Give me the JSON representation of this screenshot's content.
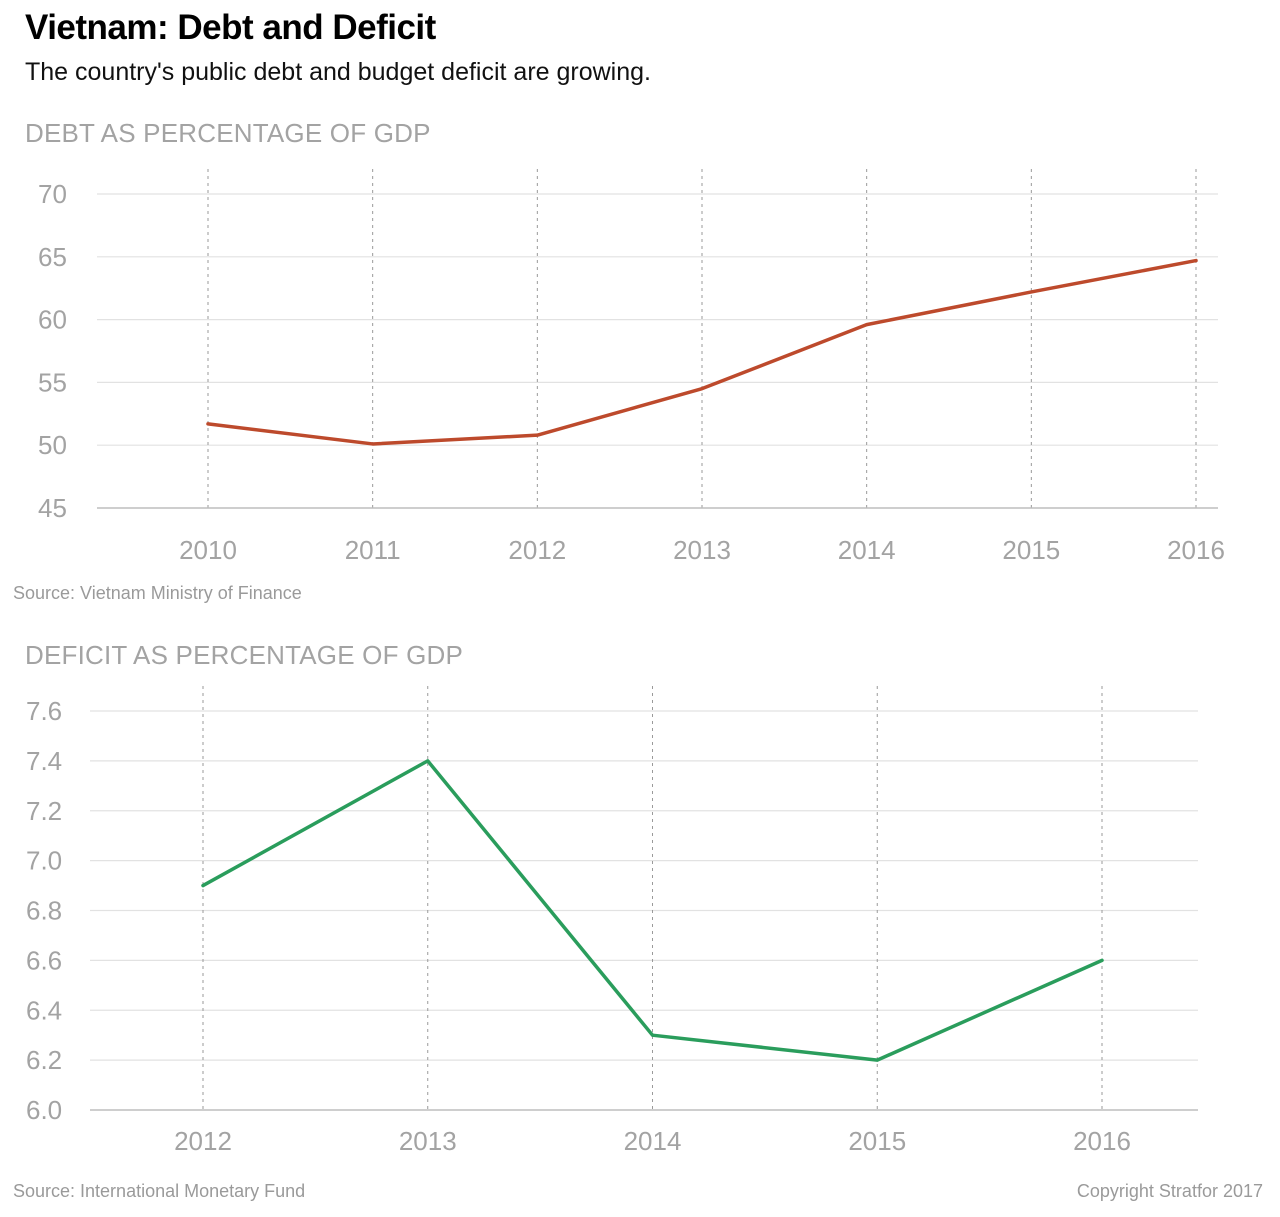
{
  "header": {
    "title": "Vietnam: Debt and Deficit",
    "subtitle": "The country's public debt and budget deficit are growing."
  },
  "footer": {
    "copyright": "Copyright Stratfor 2017"
  },
  "chart_data": [
    {
      "type": "line",
      "title": "DEBT AS PERCENTAGE OF GDP",
      "source": "Source: Vietnam Ministry of Finance",
      "x": [
        "2010",
        "2011",
        "2012",
        "2013",
        "2014",
        "2015",
        "2016"
      ],
      "values": [
        51.7,
        50.1,
        50.8,
        54.5,
        59.6,
        62.2,
        64.7
      ],
      "yticks": [
        "45",
        "50",
        "55",
        "60",
        "65",
        "70"
      ],
      "ylim": [
        45,
        70
      ],
      "color": "#bd4a2c",
      "grid": true
    },
    {
      "type": "line",
      "title": "DEFICIT AS PERCENTAGE OF GDP",
      "source": "Source: International Monetary Fund",
      "x": [
        "2012",
        "2013",
        "2014",
        "2015",
        "2016"
      ],
      "values": [
        6.9,
        7.4,
        6.3,
        6.2,
        6.6
      ],
      "yticks": [
        "6.0",
        "6.2",
        "6.4",
        "6.6",
        "6.8",
        "7.0",
        "7.2",
        "7.4",
        "7.6"
      ],
      "ylim": [
        6.0,
        7.6
      ],
      "color": "#2a9d5c",
      "grid": true
    }
  ]
}
